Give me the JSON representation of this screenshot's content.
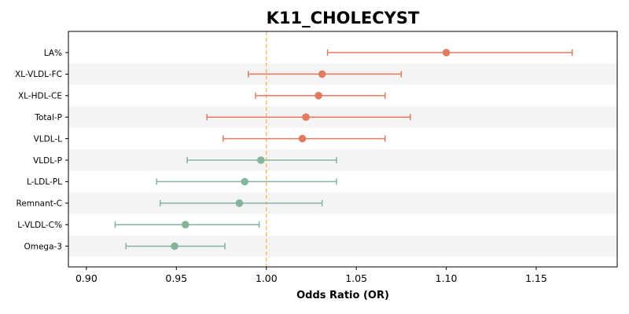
{
  "chart_data": {
    "type": "forest",
    "title": "K11_CHOLECYST",
    "xlabel": "Odds Ratio (OR)",
    "ylabel": "",
    "xlim": [
      0.89,
      1.195
    ],
    "xticks": [
      "0.90",
      "0.95",
      "1.00",
      "1.05",
      "1.10",
      "1.15"
    ],
    "reference_line": 1.0,
    "row_shading": "alternating light grey bands",
    "colors": {
      "above_one": "#e07b5f",
      "below_one": "#84b59b",
      "reference_line": "#f5c27a",
      "band": "#f4f4f4"
    },
    "rows": [
      {
        "label": "LA%",
        "or": 1.1,
        "lo": 1.034,
        "hi": 1.17
      },
      {
        "label": "XL-VLDL-FC",
        "or": 1.031,
        "lo": 0.99,
        "hi": 1.075
      },
      {
        "label": "XL-HDL-CE",
        "or": 1.029,
        "lo": 0.994,
        "hi": 1.066
      },
      {
        "label": "Total-P",
        "or": 1.022,
        "lo": 0.967,
        "hi": 1.08
      },
      {
        "label": "VLDL-L",
        "or": 1.02,
        "lo": 0.976,
        "hi": 1.066
      },
      {
        "label": "VLDL-P",
        "or": 0.997,
        "lo": 0.956,
        "hi": 1.039
      },
      {
        "label": "L-LDL-PL",
        "or": 0.988,
        "lo": 0.939,
        "hi": 1.039
      },
      {
        "label": "Remnant-C",
        "or": 0.985,
        "lo": 0.941,
        "hi": 1.031
      },
      {
        "label": "L-VLDL-C%",
        "or": 0.955,
        "lo": 0.916,
        "hi": 0.996
      },
      {
        "label": "Omega-3",
        "or": 0.949,
        "lo": 0.922,
        "hi": 0.977
      }
    ]
  }
}
